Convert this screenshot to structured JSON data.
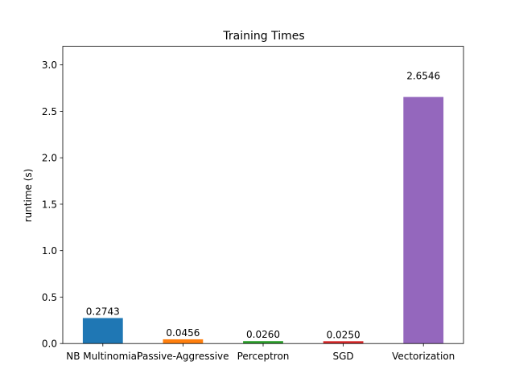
{
  "chart_data": {
    "type": "bar",
    "title": "Training Times",
    "xlabel": "",
    "ylabel": "runtime (s)",
    "categories": [
      "NB Multinomial",
      "Passive-Aggressive",
      "Perceptron",
      "SGD",
      "Vectorization"
    ],
    "values": [
      0.2743,
      0.0456,
      0.026,
      0.025,
      2.6546
    ],
    "value_labels": [
      "0.2743",
      "0.0456",
      "0.0260",
      "0.0250",
      "2.6546"
    ],
    "colors": [
      "#1f77b4",
      "#ff7f0e",
      "#2ca02c",
      "#d62728",
      "#9467bd"
    ],
    "ylim": [
      0,
      3.2
    ],
    "yticks": [
      0.0,
      0.5,
      1.0,
      1.5,
      2.0,
      2.5,
      3.0
    ],
    "ytick_labels": [
      "0.0",
      "0.5",
      "1.0",
      "1.5",
      "2.0",
      "2.5",
      "3.0"
    ],
    "grid": false,
    "legend": "none"
  }
}
